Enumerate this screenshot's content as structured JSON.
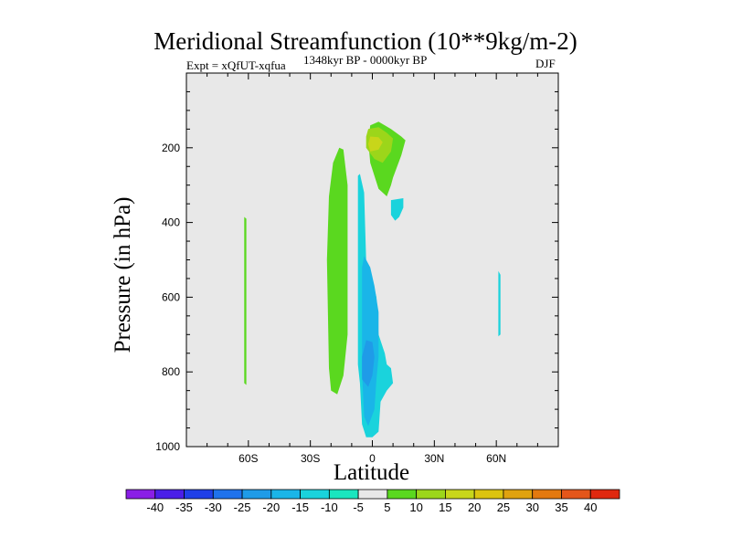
{
  "chart_data": {
    "type": "contour",
    "title": "Meridional Streamfunction (10**9kg/m-2)",
    "subtitle_left": "Expt = xQfUT-xqfua",
    "subtitle_center": "1348kyr BP - 0000kyr BP",
    "subtitle_right": "DJF",
    "xlabel": "Latitude",
    "ylabel": "Pressure (in hPa)",
    "xlim": [
      -90,
      90
    ],
    "ylim": [
      1000,
      0
    ],
    "x_ticks": [
      {
        "value": -60,
        "label": "60S"
      },
      {
        "value": -30,
        "label": "30S"
      },
      {
        "value": 0,
        "label": "0"
      },
      {
        "value": 30,
        "label": "30N"
      },
      {
        "value": 60,
        "label": "60N"
      }
    ],
    "y_ticks": [
      200,
      400,
      600,
      800,
      1000
    ],
    "background_color": "#e8e8e8",
    "colorbar": {
      "labels": [
        "-40",
        "-35",
        "-30",
        "-25",
        "-20",
        "-15",
        "-10",
        "-5",
        "5",
        "10",
        "15",
        "20",
        "25",
        "30",
        "35",
        "40"
      ],
      "colors": [
        "#8a1ee6",
        "#4a1ee8",
        "#1f3fe8",
        "#1f72ec",
        "#1f9be8",
        "#1ab5e8",
        "#1ad3dc",
        "#1ae6bf",
        "#e8e8e8",
        "#5ad81f",
        "#9cd61a",
        "#c8d61a",
        "#dcc40f",
        "#e0a20f",
        "#e3790f",
        "#e4561a",
        "#e0280f"
      ]
    },
    "regions": [
      {
        "name": "positive-band-60S",
        "category": "5 to 10",
        "lat": [
          -62,
          -61
        ],
        "pressure": [
          385,
          835
        ]
      },
      {
        "name": "positive-column-15S",
        "category": "5 to 10",
        "lat": [
          -22,
          -12
        ],
        "pressure": [
          200,
          860
        ]
      },
      {
        "name": "positive-cell-upper",
        "category": "5 to 10",
        "lat": [
          -1,
          16
        ],
        "pressure": [
          130,
          330
        ]
      },
      {
        "name": "positive-core-upper",
        "category": "10 to 15",
        "lat": [
          -3,
          10
        ],
        "pressure": [
          145,
          230
        ]
      },
      {
        "name": "positive-peak-upper",
        "category": "15 to 20",
        "lat": [
          -2,
          5
        ],
        "pressure": [
          170,
          210
        ]
      },
      {
        "name": "negative-column-equator",
        "category": "-5 to -10",
        "lat": [
          -7,
          10
        ],
        "pressure": [
          270,
          975
        ]
      },
      {
        "name": "negative-core-equator",
        "category": "-10 to -15",
        "lat": [
          -5,
          3
        ],
        "pressure": [
          480,
          945
        ]
      },
      {
        "name": "negative-peak-equator",
        "category": "-15 to -20",
        "lat": [
          -5,
          1
        ],
        "pressure": [
          710,
          840
        ]
      },
      {
        "name": "negative-blob-10N",
        "category": "-5 to -10",
        "lat": [
          9,
          15
        ],
        "pressure": [
          335,
          395
        ]
      },
      {
        "name": "negative-band-60N",
        "category": "-5 to -10",
        "lat": [
          61,
          62
        ],
        "pressure": [
          530,
          705
        ]
      }
    ]
  }
}
